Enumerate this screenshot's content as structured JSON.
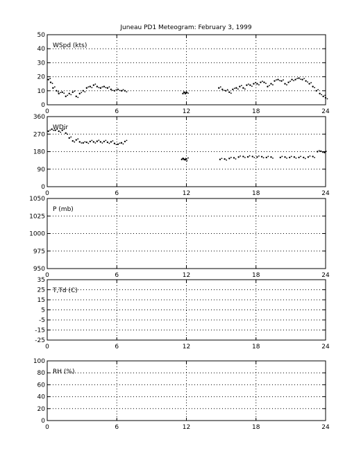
{
  "title": "Juneau PD1 Meteogram:  February  3, 1999",
  "chart_data": [
    {
      "type": "scatter",
      "label": "WSpd (kts)",
      "xlim": [
        0,
        24
      ],
      "ylim": [
        0,
        50
      ],
      "xticks": [
        0,
        6,
        12,
        18,
        24
      ],
      "yticks": [
        0,
        10,
        20,
        30,
        40,
        50
      ],
      "grid": true,
      "segments": [
        {
          "x": [
            0.1,
            0.3,
            0.5,
            0.8,
            1.0,
            1.3,
            1.6,
            1.9,
            2.2,
            2.5,
            2.8,
            3.1,
            3.4,
            3.7,
            4.0,
            4.3,
            4.6,
            4.9,
            5.2,
            5.5,
            5.8,
            6.1,
            6.4,
            6.7
          ],
          "y": [
            18,
            16,
            12,
            10,
            8,
            9,
            6,
            8,
            9,
            6,
            8,
            10,
            12,
            13,
            14,
            13,
            12,
            13,
            12,
            11,
            10,
            11,
            10,
            10
          ]
        },
        {
          "x": [
            11.7,
            11.8,
            11.9,
            12.0
          ],
          "y": [
            8,
            9,
            8,
            9
          ]
        },
        {
          "x": [
            14.8,
            15.1,
            15.4,
            15.7,
            16.0,
            16.3,
            16.6,
            16.9,
            17.2,
            17.5,
            17.8,
            18.1,
            18.4,
            18.7,
            19.0,
            19.3,
            19.6,
            19.9,
            20.2,
            20.5,
            20.8,
            21.1,
            21.4,
            21.7,
            22.0,
            22.3,
            22.6,
            22.9,
            23.2,
            23.5,
            23.8,
            24.0
          ],
          "y": [
            12,
            11,
            10,
            9,
            11,
            12,
            13,
            12,
            14,
            14,
            15,
            15,
            16,
            16,
            13,
            15,
            17,
            18,
            17,
            15,
            16,
            18,
            18,
            19,
            18,
            17,
            15,
            13,
            10,
            8,
            6,
            5
          ]
        }
      ]
    },
    {
      "type": "scatter",
      "label": "WDir",
      "xlim": [
        0,
        24
      ],
      "ylim": [
        0,
        360
      ],
      "xticks": [
        0,
        6,
        12,
        18,
        24
      ],
      "yticks": [
        0,
        90,
        180,
        270,
        360
      ],
      "grid": true,
      "segments": [
        {
          "x": [
            0.1,
            0.4,
            0.7,
            1.0,
            1.3,
            1.6,
            1.9,
            2.2,
            2.5,
            2.8,
            3.1,
            3.4,
            3.7,
            4.0,
            4.3,
            4.6,
            4.9,
            5.2,
            5.5,
            5.8,
            6.1,
            6.4,
            6.7
          ],
          "y": [
            285,
            295,
            290,
            285,
            290,
            275,
            250,
            235,
            240,
            230,
            225,
            228,
            232,
            230,
            233,
            230,
            232,
            228,
            230,
            222,
            218,
            225,
            232
          ]
        },
        {
          "x": [
            11.6,
            11.7,
            11.8,
            11.9,
            12.0
          ],
          "y": [
            140,
            145,
            140,
            138,
            142
          ]
        },
        {
          "x": [
            14.9,
            15.3,
            15.7,
            16.1,
            16.5,
            16.9,
            17.3,
            17.7,
            18.1,
            18.5,
            18.9,
            19.3,
            20.1,
            20.5,
            20.9,
            21.3,
            21.7,
            22.1,
            22.5,
            22.9,
            23.3,
            23.6,
            23.9
          ],
          "y": [
            140,
            142,
            145,
            148,
            152,
            155,
            153,
            155,
            152,
            154,
            150,
            152,
            150,
            152,
            150,
            152,
            150,
            150,
            152,
            155,
            180,
            182,
            176
          ]
        }
      ]
    },
    {
      "type": "scatter",
      "label": "P (mb)",
      "xlim": [
        0,
        24
      ],
      "ylim": [
        950,
        1050
      ],
      "xticks": [
        0,
        6,
        12,
        18,
        24
      ],
      "yticks": [
        950,
        975,
        1000,
        1025,
        1050
      ],
      "grid": true,
      "segments": []
    },
    {
      "type": "scatter",
      "label": "T,Td (C)",
      "xlim": [
        0,
        24
      ],
      "ylim": [
        -25,
        35
      ],
      "xticks": [
        0,
        6,
        12,
        18,
        24
      ],
      "yticks": [
        -25,
        -15,
        -5,
        5,
        15,
        25,
        35
      ],
      "grid": true,
      "segments": []
    },
    {
      "type": "scatter",
      "label": "RH (%)",
      "xlim": [
        0,
        24
      ],
      "ylim": [
        0,
        100
      ],
      "xticks": [
        0,
        6,
        12,
        18,
        24
      ],
      "yticks": [
        0,
        20,
        40,
        60,
        80,
        100
      ],
      "grid": true,
      "segments": []
    }
  ]
}
